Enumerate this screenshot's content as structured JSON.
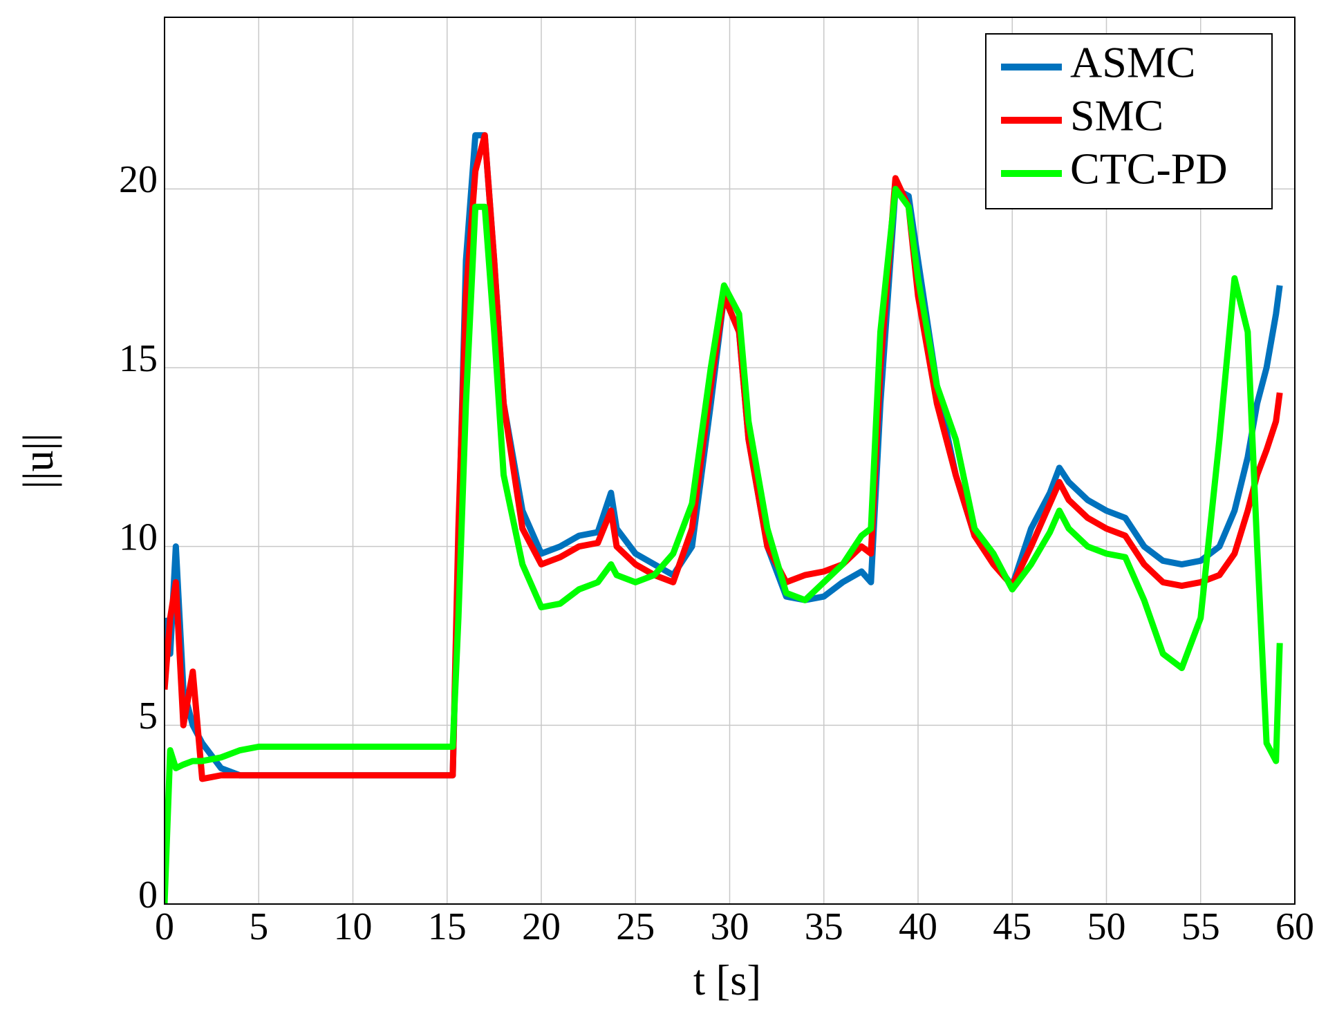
{
  "chart_data": {
    "type": "line",
    "xlabel": "t [s]",
    "ylabel": "||u||",
    "x": [
      0,
      0.3,
      0.6,
      1,
      1.5,
      2,
      3,
      4,
      5,
      7,
      10,
      13,
      15.3,
      15.6,
      16,
      16.5,
      17,
      17.5,
      18,
      19,
      20,
      21,
      22,
      23,
      23.7,
      24,
      25,
      26,
      27,
      28,
      29,
      29.7,
      30.5,
      31,
      32,
      33,
      34,
      35,
      36,
      37,
      37.5,
      38,
      38.8,
      39.5,
      40,
      41,
      42,
      43,
      44,
      45,
      46,
      47,
      47.5,
      48,
      49,
      50,
      51,
      52,
      53,
      54,
      55,
      56,
      56.8,
      57.5,
      58,
      58.5,
      59,
      59.2
    ],
    "series": [
      {
        "name": "ASMC",
        "color": "#0072bd",
        "values": [
          8,
          7,
          10,
          6,
          5,
          4.5,
          3.8,
          3.6,
          3.6,
          3.6,
          3.6,
          3.6,
          3.6,
          10,
          18,
          21.5,
          21.5,
          18,
          14,
          11,
          9.8,
          10,
          10.3,
          10.4,
          11.5,
          10.5,
          9.8,
          9.5,
          9.2,
          10,
          14,
          17,
          16,
          13,
          10,
          8.6,
          8.5,
          8.6,
          9,
          9.3,
          9,
          14,
          20,
          19.8,
          18,
          14.5,
          12,
          10.3,
          9.6,
          8.9,
          10.5,
          11.5,
          12.2,
          11.8,
          11.3,
          11,
          10.8,
          10,
          9.6,
          9.5,
          9.6,
          10,
          11,
          12.5,
          14,
          15,
          16.5,
          17.3
        ]
      },
      {
        "name": "SMC",
        "color": "#ff0000",
        "values": [
          6,
          8,
          9,
          5,
          6.5,
          3.5,
          3.6,
          3.6,
          3.6,
          3.6,
          3.6,
          3.6,
          3.6,
          10.5,
          17,
          20.5,
          21.5,
          18,
          14,
          10.5,
          9.5,
          9.7,
          10,
          10.1,
          11,
          10,
          9.5,
          9.2,
          9,
          10.5,
          14.5,
          17,
          16,
          13,
          10,
          9,
          9.2,
          9.3,
          9.5,
          10,
          9.8,
          15,
          20.3,
          19.5,
          17,
          14,
          12,
          10.3,
          9.5,
          8.9,
          10,
          11.2,
          11.8,
          11.3,
          10.8,
          10.5,
          10.3,
          9.5,
          9,
          8.9,
          9,
          9.2,
          9.8,
          11,
          12,
          12.7,
          13.5,
          14.3
        ]
      },
      {
        "name": "CTC-PD",
        "color": "#00ff00",
        "values": [
          0,
          4.3,
          3.8,
          3.9,
          4,
          4,
          4.1,
          4.3,
          4.4,
          4.4,
          4.4,
          4.4,
          4.4,
          8,
          14,
          19.5,
          19.5,
          16,
          12,
          9.5,
          8.3,
          8.4,
          8.8,
          9,
          9.5,
          9.2,
          9,
          9.2,
          9.8,
          11.2,
          15,
          17.3,
          16.5,
          13.5,
          10.5,
          8.7,
          8.5,
          9,
          9.5,
          10.3,
          10.5,
          16,
          20,
          19.5,
          17.5,
          14.5,
          13,
          10.5,
          9.8,
          8.8,
          9.5,
          10.4,
          11,
          10.5,
          10,
          9.8,
          9.7,
          8.5,
          7,
          6.6,
          8,
          13,
          17.5,
          16,
          10,
          4.5,
          4,
          7.3
        ]
      }
    ],
    "xlim": [
      0,
      60
    ],
    "xticks": [
      0,
      5,
      10,
      15,
      20,
      25,
      30,
      35,
      40,
      45,
      50,
      55,
      60
    ],
    "ylim": [
      0,
      24.8
    ],
    "yticks": [
      0,
      5,
      10,
      15,
      20
    ],
    "grid": true,
    "legend": "upper right"
  }
}
